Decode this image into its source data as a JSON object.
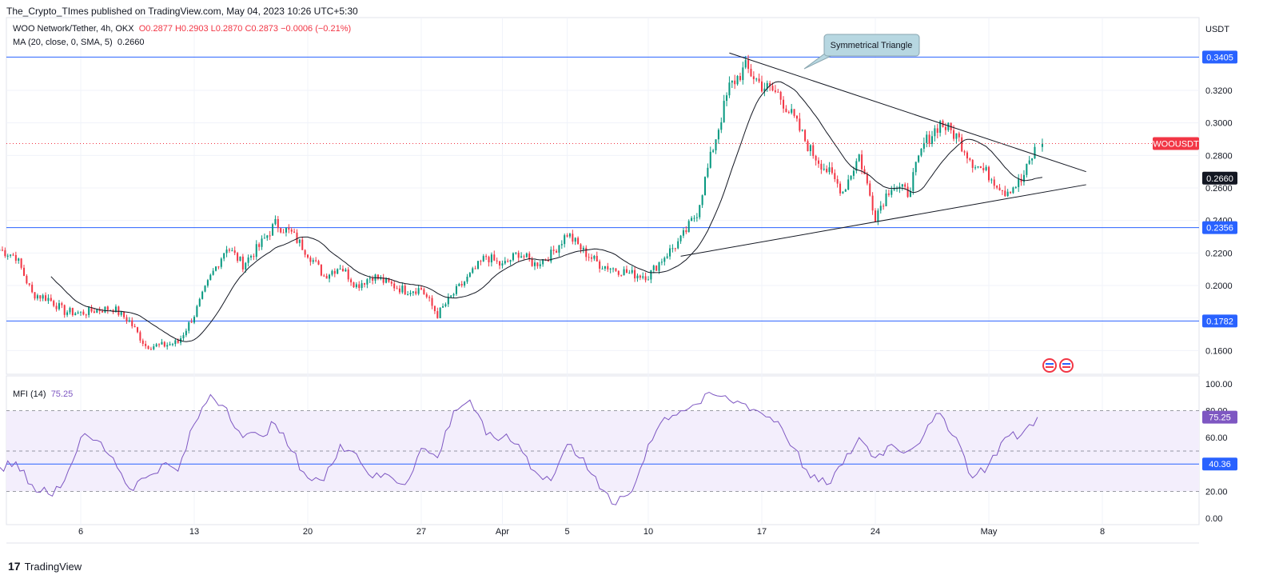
{
  "header": {
    "publisher": "The_Crypto_TImes published on TradingView.com, May 04, 2023 10:26 UTC+5:30"
  },
  "legend": {
    "symbol": "WOO Network/Tether, 4h, OKX",
    "ohlc": "O0.2877  H0.2903  L0.2870  C0.2873  −0.0006 (−0.21%)",
    "ma": "MA (20, close, 0, SMA, 5)",
    "ma_value": "0.2660",
    "mfi": "MFI (14)",
    "mfi_value": "75.25"
  },
  "footer": {
    "logo": "17",
    "brand": "TradingView"
  },
  "colors": {
    "up": "#089981",
    "down": "#f23645",
    "hline": "#2962ff",
    "ma": "#131722",
    "mfi": "#7e57c2",
    "mfi_band": "#f3eefc",
    "price_tag": "#f23645"
  },
  "chart_data": [
    {
      "type": "candlestick",
      "title": "WOO Network/Tether, 4h, OKX",
      "currency": "USDT",
      "x_ticks": [
        "6",
        "13",
        "20",
        "27",
        "Apr",
        "5",
        "10",
        "17",
        "24",
        "May",
        "8"
      ],
      "y_ticks": [
        "0.1600",
        "0.1800",
        "0.2000",
        "0.2200",
        "0.2400",
        "0.2600",
        "0.2800",
        "0.3000",
        "0.3200"
      ],
      "ylim": [
        0.145,
        0.355
      ],
      "horizontal_levels": [
        "0.3405",
        "0.2356",
        "0.1782"
      ],
      "last_price": {
        "label": "WOOUSDT",
        "value": 0.2873
      },
      "ma_last_value": "0.2660",
      "annotation": "Symmetrical Triangle",
      "trendlines": [
        {
          "name": "upper",
          "from": [
            "Apr 15",
            0.343
          ],
          "to": [
            "May 07",
            0.27
          ]
        },
        {
          "name": "lower",
          "from": [
            "Apr 12",
            0.218
          ],
          "to": [
            "May 07",
            0.262
          ]
        }
      ],
      "anchors": [
        [
          "Mar 01",
          0.222
        ],
        [
          "Mar 02",
          0.218
        ],
        [
          "Mar 03",
          0.195
        ],
        [
          "Mar 04",
          0.192
        ],
        [
          "Mar 05",
          0.184
        ],
        [
          "Mar 06",
          0.183
        ],
        [
          "Mar 07",
          0.185
        ],
        [
          "Mar 08",
          0.186
        ],
        [
          "Mar 09",
          0.178
        ],
        [
          "Mar 10",
          0.163
        ],
        [
          "Mar 11",
          0.163
        ],
        [
          "Mar 12",
          0.165
        ],
        [
          "Mar 13",
          0.182
        ],
        [
          "Mar 14",
          0.205
        ],
        [
          "Mar 15",
          0.224
        ],
        [
          "Mar 16",
          0.213
        ],
        [
          "Mar 17",
          0.224
        ],
        [
          "Mar 18",
          0.238
        ],
        [
          "Mar 19",
          0.232
        ],
        [
          "Mar 20",
          0.22
        ],
        [
          "Mar 21",
          0.206
        ],
        [
          "Mar 22",
          0.212
        ],
        [
          "Mar 23",
          0.2
        ],
        [
          "Mar 24",
          0.206
        ],
        [
          "Mar 25",
          0.201
        ],
        [
          "Mar 26",
          0.197
        ],
        [
          "Mar 27",
          0.198
        ],
        [
          "Mar 28",
          0.182
        ],
        [
          "Mar 29",
          0.195
        ],
        [
          "Mar 30",
          0.206
        ],
        [
          "Mar 31",
          0.218
        ],
        [
          "Apr 01",
          0.212
        ],
        [
          "Apr 02",
          0.22
        ],
        [
          "Apr 03",
          0.213
        ],
        [
          "Apr 04",
          0.219
        ],
        [
          "Apr 05",
          0.232
        ],
        [
          "Apr 06",
          0.221
        ],
        [
          "Apr 07",
          0.213
        ],
        [
          "Apr 08",
          0.21
        ],
        [
          "Apr 09",
          0.207
        ],
        [
          "Apr 10",
          0.206
        ],
        [
          "Apr 11",
          0.218
        ],
        [
          "Apr 12",
          0.228
        ],
        [
          "Apr 13",
          0.245
        ],
        [
          "Apr 14",
          0.285
        ],
        [
          "Apr 15",
          0.322
        ],
        [
          "Apr 16",
          0.334
        ],
        [
          "Apr 17",
          0.323
        ],
        [
          "Apr 18",
          0.318
        ],
        [
          "Apr 19",
          0.302
        ],
        [
          "Apr 20",
          0.283
        ],
        [
          "Apr 21",
          0.271
        ],
        [
          "Apr 22",
          0.258
        ],
        [
          "Apr 23",
          0.28
        ],
        [
          "Apr 24",
          0.243
        ],
        [
          "Apr 25",
          0.262
        ],
        [
          "Apr 26",
          0.257
        ],
        [
          "Apr 27",
          0.287
        ],
        [
          "Apr 28",
          0.3
        ],
        [
          "Apr 29",
          0.292
        ],
        [
          "Apr 30",
          0.276
        ],
        [
          "May 01",
          0.268
        ],
        [
          "May 02",
          0.258
        ],
        [
          "May 03",
          0.264
        ],
        [
          "May 04",
          0.287
        ]
      ]
    },
    {
      "type": "line",
      "title": "MFI (14)",
      "y_ticks": [
        "0.00",
        "20.00",
        "40.00",
        "60.00",
        "80.00",
        "100.00"
      ],
      "ylim": [
        0,
        100
      ],
      "bands": {
        "upper": 80,
        "middle": 50,
        "lower": 20
      },
      "horizontal_level": "40.36",
      "last_value": "75.25",
      "x": [
        "Mar 01",
        "Mar 02",
        "Mar 03",
        "Mar 04",
        "Mar 05",
        "Mar 06",
        "Mar 07",
        "Mar 08",
        "Mar 09",
        "Mar 10",
        "Mar 11",
        "Mar 12",
        "Mar 13",
        "Mar 14",
        "Mar 15",
        "Mar 16",
        "Mar 17",
        "Mar 18",
        "Mar 19",
        "Mar 20",
        "Mar 21",
        "Mar 22",
        "Mar 23",
        "Mar 24",
        "Mar 25",
        "Mar 26",
        "Mar 27",
        "Mar 28",
        "Mar 29",
        "Mar 30",
        "Mar 31",
        "Apr 01",
        "Apr 02",
        "Apr 03",
        "Apr 04",
        "Apr 05",
        "Apr 06",
        "Apr 07",
        "Apr 08",
        "Apr 09",
        "Apr 10",
        "Apr 11",
        "Apr 12",
        "Apr 13",
        "Apr 14",
        "Apr 15",
        "Apr 16",
        "Apr 17",
        "Apr 18",
        "Apr 19",
        "Apr 20",
        "Apr 21",
        "Apr 22",
        "Apr 23",
        "Apr 24",
        "Apr 25",
        "Apr 26",
        "Apr 27",
        "Apr 28",
        "Apr 29",
        "Apr 30",
        "May 01",
        "May 02",
        "May 03",
        "May 04"
      ],
      "values": [
        38,
        42,
        25,
        18,
        28,
        60,
        58,
        45,
        22,
        30,
        40,
        35,
        70,
        92,
        82,
        60,
        62,
        70,
        50,
        30,
        28,
        55,
        48,
        30,
        32,
        25,
        52,
        45,
        80,
        88,
        62,
        60,
        55,
        35,
        28,
        55,
        45,
        22,
        10,
        20,
        55,
        75,
        80,
        85,
        92,
        88,
        85,
        78,
        72,
        52,
        30,
        25,
        40,
        60,
        45,
        55,
        50,
        62,
        78,
        60,
        30,
        40,
        60,
        62,
        75.25
      ]
    }
  ]
}
